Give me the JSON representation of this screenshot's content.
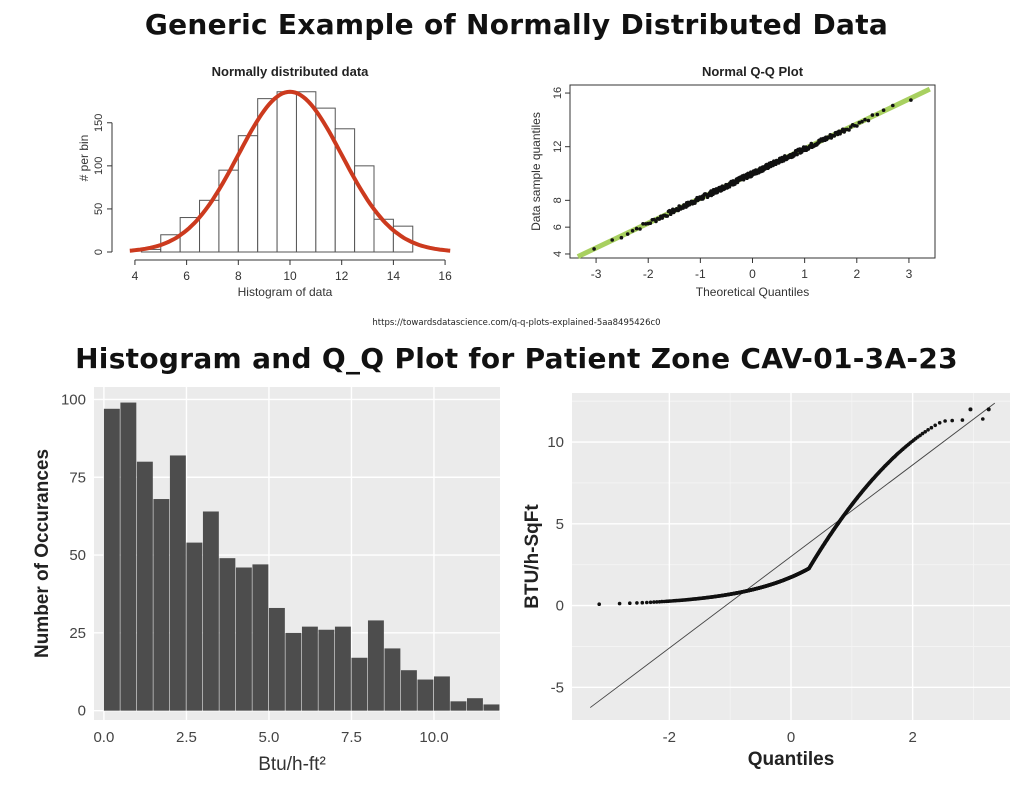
{
  "header": {
    "title_top": "Generic Example of Normally Distributed Data",
    "source_url": "https://towardsdatascience.com/q-q-plots-explained-5aa8495426c0",
    "title_bottom": "Histogram and Q_Q Plot for Patient Zone CAV-01-3A-23"
  },
  "colors": {
    "bar_gray": "#4d4d4d",
    "panel_bg": "#ebebeb",
    "curve_red": "#cc3a1e",
    "qq_green": "#a8d060"
  },
  "chart_data": [
    {
      "type": "bar",
      "title": "Normally distributed data",
      "xlabel": "Histogram of data",
      "ylabel": "# per bin",
      "x_ticks": [
        4,
        6,
        8,
        10,
        12,
        14,
        16
      ],
      "y_ticks": [
        0,
        50,
        100,
        150
      ],
      "xlim": [
        3.5,
        16.5
      ],
      "ylim": [
        0,
        195
      ],
      "bin_width": 0.75,
      "bin_starts": [
        4.25,
        5.0,
        5.75,
        6.5,
        7.25,
        8.0,
        8.75,
        9.5,
        10.25,
        11.0,
        11.75,
        12.5,
        13.25,
        14.0
      ],
      "values": [
        3,
        20,
        40,
        60,
        95,
        135,
        178,
        186,
        186,
        167,
        143,
        100,
        38,
        30
      ],
      "fit_curve": {
        "mean": 10,
        "sd": 2,
        "peak": 186
      }
    },
    {
      "type": "scatter",
      "title": "Normal Q-Q Plot",
      "xlabel": "Theoretical Quantiles",
      "ylabel": "Data sample quantiles",
      "x_ticks": [
        -3,
        -2,
        -1,
        0,
        1,
        2,
        3
      ],
      "y_ticks": [
        4,
        6,
        8,
        12,
        16
      ],
      "xlim": [
        -3.5,
        3.5
      ],
      "ylim": [
        3.7,
        16.6
      ],
      "reference_line": {
        "intercept": 10,
        "slope": 1.85
      }
    },
    {
      "type": "bar",
      "title": "",
      "xlabel": "Btu/h-ft²",
      "ylabel": "Number of Occurances",
      "x_ticks": [
        0.0,
        2.5,
        5.0,
        7.5,
        10.0
      ],
      "x_tick_labels": [
        "0.0",
        "2.5",
        "5.0",
        "7.5",
        "10.0"
      ],
      "y_ticks": [
        0,
        25,
        50,
        75,
        100
      ],
      "xlim": [
        -0.3,
        12.0
      ],
      "ylim": [
        -3,
        104
      ],
      "bin_width": 0.5,
      "bin_starts": [
        0.0,
        0.5,
        1.0,
        1.5,
        2.0,
        2.5,
        3.0,
        3.5,
        4.0,
        4.5,
        5.0,
        5.5,
        6.0,
        6.5,
        7.0,
        7.5,
        8.0,
        8.5,
        9.0,
        9.5,
        10.0,
        10.5,
        11.0,
        11.5
      ],
      "values": [
        97,
        99,
        80,
        68,
        82,
        54,
        64,
        49,
        46,
        47,
        33,
        25,
        27,
        26,
        27,
        17,
        29,
        20,
        13,
        10,
        11,
        3,
        4,
        2
      ]
    },
    {
      "type": "scatter",
      "title": "",
      "xlabel": "Quantiles",
      "ylabel": "BTU/h-SqFt",
      "x_ticks": [
        -2,
        0,
        2
      ],
      "y_ticks": [
        -5,
        0,
        5,
        10
      ],
      "xlim": [
        -3.6,
        3.6
      ],
      "ylim": [
        -7.0,
        13.0
      ],
      "reference_line": {
        "intercept": 3.0,
        "slope": 2.8
      }
    }
  ]
}
